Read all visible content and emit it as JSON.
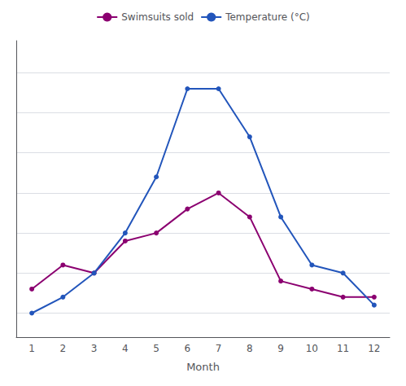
{
  "chart_data": {
    "type": "line",
    "xlabel": "Month",
    "x": [
      1,
      2,
      3,
      4,
      5,
      6,
      7,
      8,
      9,
      10,
      11,
      12
    ],
    "series": [
      {
        "name": "Swimsuits sold",
        "color": "#8B0070",
        "marker": "circle",
        "values": [
          3,
          6,
          5,
          9,
          10,
          13,
          15,
          12,
          4,
          3,
          2,
          2
        ]
      },
      {
        "name": "Temperature (°C)",
        "color": "#2255BB",
        "marker": "circle",
        "values": [
          0,
          2,
          5,
          10,
          17,
          28,
          28,
          22,
          12,
          6,
          5,
          1
        ]
      }
    ],
    "xlim": [
      0.5,
      12.5
    ],
    "xticks": [
      1,
      2,
      3,
      4,
      5,
      6,
      7,
      8,
      9,
      10,
      11,
      12
    ],
    "ylim": [
      -3,
      34
    ],
    "yticks": [
      0,
      5,
      10,
      15,
      20,
      25,
      30
    ],
    "grid": true,
    "legend": "top",
    "tick_labels": "x"
  }
}
